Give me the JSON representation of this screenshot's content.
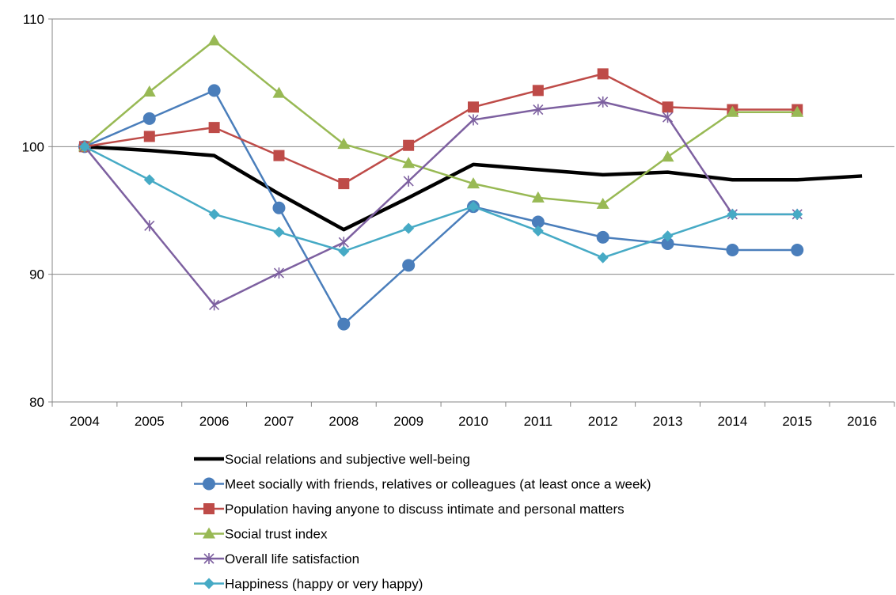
{
  "chart_data": {
    "type": "line",
    "title": "",
    "xlabel": "",
    "ylabel": "",
    "categories": [
      "2004",
      "2005",
      "2006",
      "2007",
      "2008",
      "2009",
      "2010",
      "2011",
      "2012",
      "2013",
      "2014",
      "2015",
      "2016"
    ],
    "ylim": [
      80,
      110
    ],
    "yticks": [
      80,
      90,
      100,
      110
    ],
    "grid": "horizontal",
    "legend_position": "bottom",
    "series": [
      {
        "name": "Social relations and subjective well-being",
        "color": "#000000",
        "marker": "none",
        "bold": true,
        "values": [
          100,
          99.7,
          99.3,
          96.3,
          93.5,
          96.0,
          98.6,
          98.2,
          97.8,
          98.0,
          97.4,
          97.4,
          97.7
        ]
      },
      {
        "name": "Meet socially with friends, relatives or colleagues (at least once a week)",
        "color": "#4A7EBB",
        "marker": "circle",
        "values": [
          100,
          102.2,
          104.4,
          95.2,
          86.1,
          90.7,
          95.3,
          94.1,
          92.9,
          92.4,
          91.9,
          91.9,
          null
        ]
      },
      {
        "name": "Population having anyone to discuss intimate and personal matters",
        "color": "#BE4B48",
        "marker": "square",
        "values": [
          100,
          100.8,
          101.5,
          99.3,
          97.1,
          100.1,
          103.1,
          104.4,
          105.7,
          103.1,
          102.9,
          102.9,
          null
        ]
      },
      {
        "name": "Social trust index",
        "color": "#98B954",
        "marker": "triangle",
        "values": [
          100,
          104.3,
          108.3,
          104.2,
          100.2,
          98.7,
          97.1,
          96.0,
          95.5,
          99.2,
          102.7,
          102.7,
          null
        ]
      },
      {
        "name": "Overall life satisfaction",
        "color": "#7D60A0",
        "marker": "star",
        "values": [
          100,
          93.8,
          87.6,
          90.1,
          92.5,
          97.3,
          102.1,
          102.9,
          103.5,
          102.3,
          94.7,
          94.7,
          null
        ]
      },
      {
        "name": "Happiness (happy or very happy)",
        "color": "#46AAC5",
        "marker": "diamond",
        "values": [
          100,
          97.4,
          94.7,
          93.3,
          91.8,
          93.6,
          95.3,
          93.4,
          91.3,
          93.0,
          94.7,
          94.7,
          null
        ]
      }
    ]
  }
}
